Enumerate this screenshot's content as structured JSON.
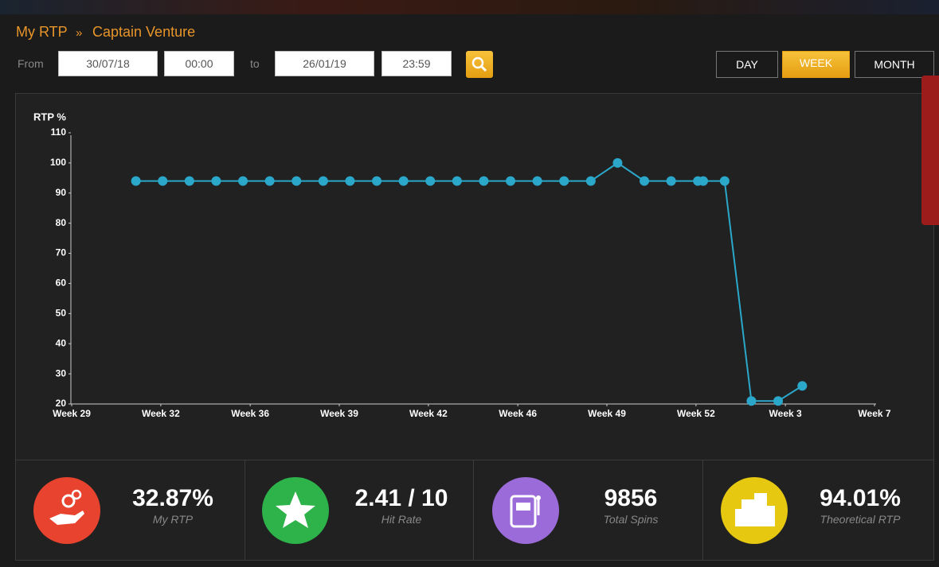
{
  "breadcrumb": {
    "root": "My RTP",
    "separator": "»",
    "current": "Captain Venture"
  },
  "filter": {
    "from_label": "From",
    "from_date": "30/07/18",
    "from_time": "00:00",
    "to_label": "to",
    "to_date": "26/01/19",
    "to_time": "23:59"
  },
  "periods": [
    "DAY",
    "WEEK",
    "MONTH"
  ],
  "chart_data": {
    "type": "line",
    "y_label": "RTP %",
    "x": [
      2.4,
      3.4,
      4.4,
      5.4,
      6.4,
      7.4,
      8.4,
      9.4,
      10.4,
      11.4,
      12.4,
      13.4,
      14.4,
      15.4,
      16.4,
      17.4,
      18.4,
      19.4,
      20.4,
      21.4,
      22.4,
      23.4,
      23.6,
      24.4,
      25.4,
      26.4,
      27.3
    ],
    "series": [
      {
        "color": "#2aa7c9",
        "values": [
          94,
          94,
          94,
          94,
          94,
          94,
          94,
          94,
          94,
          94,
          94,
          94,
          94,
          94,
          94,
          94,
          94,
          94,
          100,
          94,
          94,
          94,
          94,
          94,
          21,
          21,
          26
        ]
      }
    ],
    "xlim": [
      0,
      30
    ],
    "xticks": [
      {
        "value": 0,
        "label": "Week 29"
      },
      {
        "value": 3.33,
        "label": "Week 32"
      },
      {
        "value": 6.67,
        "label": "Week 36"
      },
      {
        "value": 10,
        "label": "Week 39"
      },
      {
        "value": 13.33,
        "label": "Week 42"
      },
      {
        "value": 16.67,
        "label": "Week 46"
      },
      {
        "value": 20,
        "label": "Week 49"
      },
      {
        "value": 23.33,
        "label": "Week 52"
      },
      {
        "value": 26.67,
        "label": "Week 3"
      },
      {
        "value": 30,
        "label": "Week 7"
      }
    ],
    "ylim": [
      20,
      110
    ],
    "yticks": [
      20,
      30,
      40,
      50,
      60,
      70,
      80,
      90,
      100,
      110
    ],
    "grid": false
  },
  "stats": [
    {
      "value": "32.87%",
      "label": "My RTP"
    },
    {
      "value": "2.41 / 10",
      "label": "Hit Rate"
    },
    {
      "value": "9856",
      "label": "Total Spins"
    },
    {
      "value": "94.01%",
      "label": "Theoretical RTP"
    }
  ]
}
